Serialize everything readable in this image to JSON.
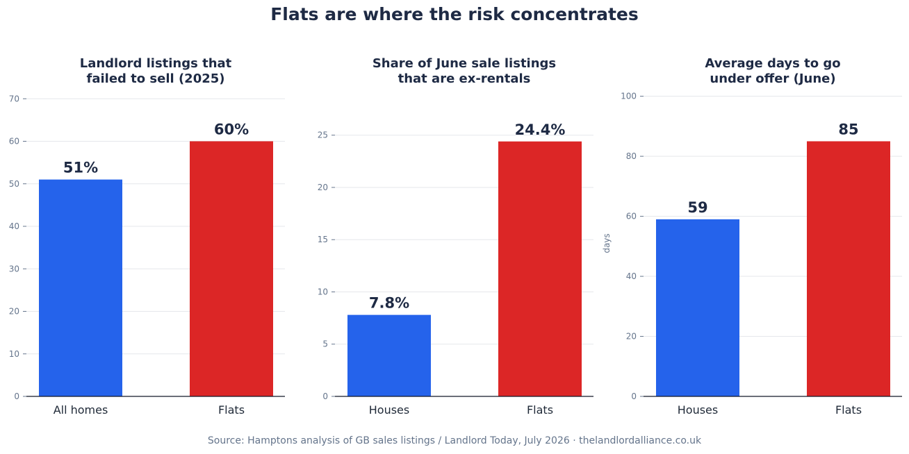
{
  "title": "Flats are where the risk concentrates",
  "source": "Source: Hamptons analysis of GB sales listings / Landlord Today, July 2026  ·  thelandlordalliance.co.uk",
  "colors": {
    "blue": "#2563eb",
    "red": "#dc2626",
    "text": "#1e2a44",
    "tick": "#64748b",
    "grid": "#e5e7eb"
  },
  "chart_data": [
    {
      "type": "bar",
      "title_lines": [
        "Landlord listings that",
        "failed to sell (2025)"
      ],
      "categories": [
        "All homes",
        "Flats"
      ],
      "values": [
        51,
        60
      ],
      "value_labels": [
        "51%",
        "60%"
      ],
      "ylim": [
        0,
        72
      ],
      "yticks": [
        0,
        10,
        20,
        30,
        40,
        50,
        60,
        70
      ],
      "ylabel": "",
      "grid": true
    },
    {
      "type": "bar",
      "title_lines": [
        "Share of June sale listings",
        "that are ex-rentals"
      ],
      "categories": [
        "Houses",
        "Flats"
      ],
      "values": [
        7.8,
        24.4
      ],
      "value_labels": [
        "7.8%",
        "24.4%"
      ],
      "ylim": [
        0,
        29.3
      ],
      "yticks": [
        0,
        5,
        10,
        15,
        20,
        25
      ],
      "ylabel": "",
      "grid": true
    },
    {
      "type": "bar",
      "title_lines": [
        "Average days to go",
        "under offer (June)"
      ],
      "categories": [
        "Houses",
        "Flats"
      ],
      "values": [
        59,
        85
      ],
      "value_labels": [
        "59",
        "85"
      ],
      "ylim": [
        0,
        102
      ],
      "yticks": [
        0,
        20,
        40,
        60,
        80,
        100
      ],
      "ylabel": "days",
      "grid": true
    }
  ]
}
